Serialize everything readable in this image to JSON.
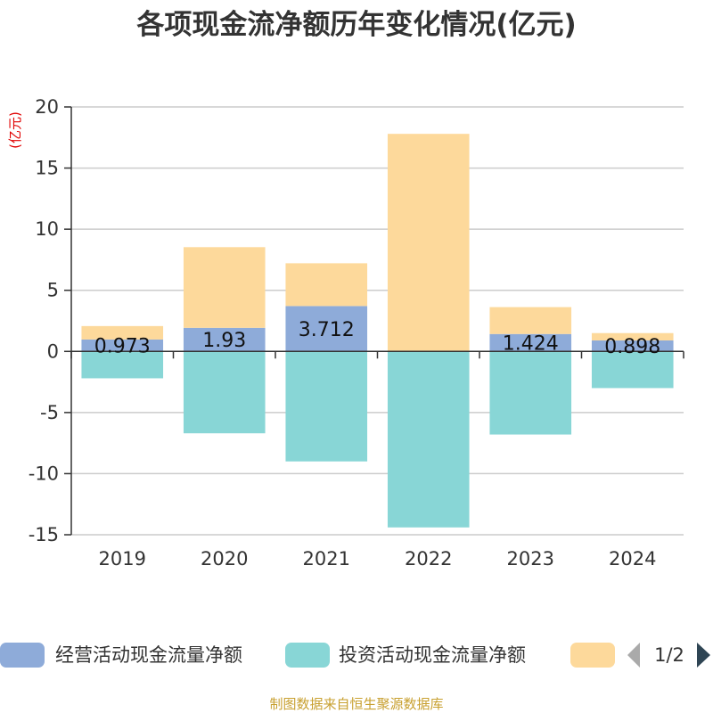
{
  "chart_data": {
    "type": "bar",
    "title": "各项现金流净额历年变化情况(亿元)",
    "unit_label": "(亿元)",
    "categories": [
      "2019",
      "2020",
      "2021",
      "2022",
      "2023",
      "2024"
    ],
    "ylim": [
      -15,
      20
    ],
    "yticks": [
      -15,
      -10,
      -5,
      0,
      5,
      10,
      15,
      20
    ],
    "stacked": true,
    "grid": true,
    "legend_position": "bottom",
    "series": [
      {
        "name": "经营活动现金流量净额",
        "color": "#8eabd9",
        "values": [
          0.973,
          1.93,
          3.712,
          0,
          1.424,
          0.898
        ],
        "labels": [
          "0.973",
          "1.93",
          "3.712",
          "",
          "1.424",
          "0.898"
        ]
      },
      {
        "name": "投资活动现金流量净额",
        "color": "#88d6d6",
        "values": [
          -2.2,
          -6.7,
          -9.0,
          -14.4,
          -6.8,
          -3.0
        ]
      },
      {
        "name": "",
        "color": "#fdd99b",
        "values": [
          1.1,
          6.6,
          3.5,
          17.8,
          2.2,
          0.6
        ]
      }
    ]
  },
  "legend": {
    "page": "1/2"
  },
  "footer": {
    "source": "制图数据来自恒生聚源数据库"
  }
}
